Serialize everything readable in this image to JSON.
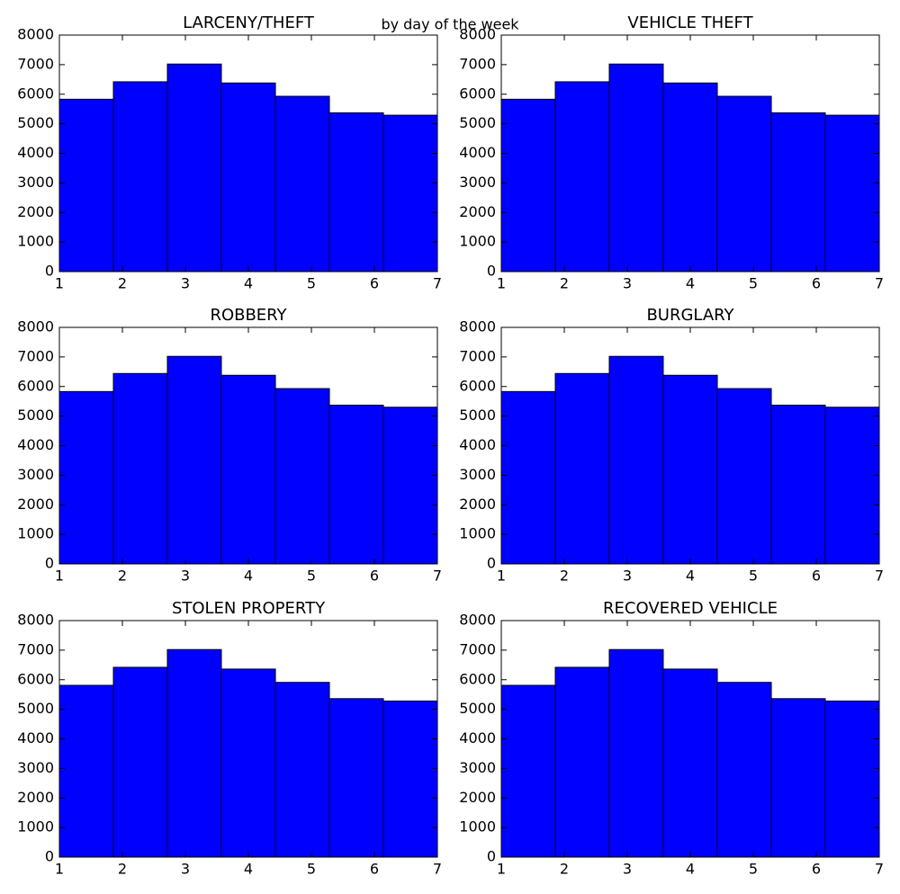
{
  "title": "by day of the week",
  "chart_data": [
    {
      "type": "histogram",
      "title": "LARCENY/THEFT",
      "bins": [
        1,
        1.857,
        2.714,
        3.571,
        4.429,
        5.286,
        6.143,
        7
      ],
      "values": [
        5830,
        6420,
        7020,
        6380,
        5930,
        5370,
        5290
      ],
      "color": "#0000ff",
      "xlim": [
        1,
        7
      ],
      "xticks": [
        1,
        2,
        3,
        4,
        5,
        6,
        7
      ],
      "ylim": [
        0,
        8000
      ],
      "yticks": [
        0,
        1000,
        2000,
        3000,
        4000,
        5000,
        6000,
        7000,
        8000
      ]
    },
    {
      "type": "histogram",
      "title": "VEHICLE THEFT",
      "bins": [
        1,
        1.857,
        2.714,
        3.571,
        4.429,
        5.286,
        6.143,
        7
      ],
      "values": [
        5830,
        6420,
        7020,
        6380,
        5930,
        5370,
        5290
      ],
      "color": "#0000ff",
      "xlim": [
        1,
        7
      ],
      "xticks": [
        1,
        2,
        3,
        4,
        5,
        6,
        7
      ],
      "ylim": [
        0,
        8000
      ],
      "yticks": [
        0,
        1000,
        2000,
        3000,
        4000,
        5000,
        6000,
        7000,
        8000
      ]
    },
    {
      "type": "histogram",
      "title": "ROBBERY",
      "bins": [
        1,
        1.857,
        2.714,
        3.571,
        4.429,
        5.286,
        6.143,
        7
      ],
      "values": [
        5830,
        6440,
        7020,
        6380,
        5930,
        5370,
        5300
      ],
      "color": "#0000ff",
      "xlim": [
        1,
        7
      ],
      "xticks": [
        1,
        2,
        3,
        4,
        5,
        6,
        7
      ],
      "ylim": [
        0,
        8000
      ],
      "yticks": [
        0,
        1000,
        2000,
        3000,
        4000,
        5000,
        6000,
        7000,
        8000
      ]
    },
    {
      "type": "histogram",
      "title": "BURGLARY",
      "bins": [
        1,
        1.857,
        2.714,
        3.571,
        4.429,
        5.286,
        6.143,
        7
      ],
      "values": [
        5830,
        6440,
        7020,
        6380,
        5930,
        5370,
        5300
      ],
      "color": "#0000ff",
      "xlim": [
        1,
        7
      ],
      "xticks": [
        1,
        2,
        3,
        4,
        5,
        6,
        7
      ],
      "ylim": [
        0,
        8000
      ],
      "yticks": [
        0,
        1000,
        2000,
        3000,
        4000,
        5000,
        6000,
        7000,
        8000
      ]
    },
    {
      "type": "histogram",
      "title": "STOLEN PROPERTY",
      "bins": [
        1,
        1.857,
        2.714,
        3.571,
        4.429,
        5.286,
        6.143,
        7
      ],
      "values": [
        5810,
        6420,
        7020,
        6360,
        5910,
        5360,
        5280
      ],
      "color": "#0000ff",
      "xlim": [
        1,
        7
      ],
      "xticks": [
        1,
        2,
        3,
        4,
        5,
        6,
        7
      ],
      "ylim": [
        0,
        8000
      ],
      "yticks": [
        0,
        1000,
        2000,
        3000,
        4000,
        5000,
        6000,
        7000,
        8000
      ]
    },
    {
      "type": "histogram",
      "title": "RECOVERED VEHICLE",
      "bins": [
        1,
        1.857,
        2.714,
        3.571,
        4.429,
        5.286,
        6.143,
        7
      ],
      "values": [
        5810,
        6420,
        7020,
        6360,
        5910,
        5360,
        5280
      ],
      "color": "#0000ff",
      "xlim": [
        1,
        7
      ],
      "xticks": [
        1,
        2,
        3,
        4,
        5,
        6,
        7
      ],
      "ylim": [
        0,
        8000
      ],
      "yticks": [
        0,
        1000,
        2000,
        3000,
        4000,
        5000,
        6000,
        7000,
        8000
      ]
    }
  ]
}
